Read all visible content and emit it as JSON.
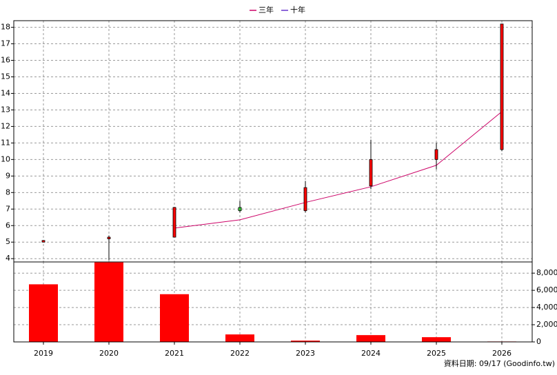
{
  "chart_data": {
    "type": "candlestick",
    "categories": [
      "2019",
      "2020",
      "2021",
      "2022",
      "2023",
      "2024",
      "2025",
      "2026"
    ],
    "open": [
      5.0,
      5.2,
      5.3,
      7.1,
      6.9,
      8.4,
      10.0,
      10.6
    ],
    "high": [
      5.1,
      5.4,
      7.1,
      7.5,
      8.7,
      11.2,
      11.0,
      18.2
    ],
    "low": [
      5.0,
      3.9,
      5.3,
      6.8,
      6.8,
      8.2,
      9.4,
      10.5
    ],
    "close": [
      5.1,
      5.3,
      7.1,
      6.9,
      8.3,
      10.0,
      10.6,
      18.2
    ],
    "up_color": "#ff0000",
    "down_color": "#33cc33",
    "series": [
      {
        "name": "三年",
        "color": "#cc0066",
        "values": [
          null,
          null,
          5.85,
          6.35,
          7.4,
          8.35,
          9.65,
          12.9
        ]
      },
      {
        "name": "十年",
        "color": "#6633cc",
        "values": [
          null,
          null,
          null,
          null,
          null,
          null,
          null,
          null
        ]
      }
    ],
    "volume": {
      "color": "#ff0000",
      "axis": "y2",
      "values": [
        6700,
        9250,
        5550,
        870,
        150,
        790,
        550,
        50
      ]
    },
    "ylim": [
      3.8,
      18.4
    ],
    "yticks": [
      4,
      5,
      6,
      7,
      8,
      9,
      10,
      11,
      12,
      13,
      14,
      15,
      16,
      17,
      18
    ],
    "y2lim": [
      0,
      9300
    ],
    "y2ticks": [
      0,
      {
        "value": 2000,
        "label": "2,000"
      },
      {
        "value": 4000,
        "label": "4,000"
      },
      {
        "value": 6000,
        "label": "6,000"
      },
      {
        "value": 8000,
        "label": "8,000"
      }
    ],
    "grid": true,
    "legend": "top",
    "footer": "資料日期: 09/17  (Goodinfo.tw)"
  }
}
